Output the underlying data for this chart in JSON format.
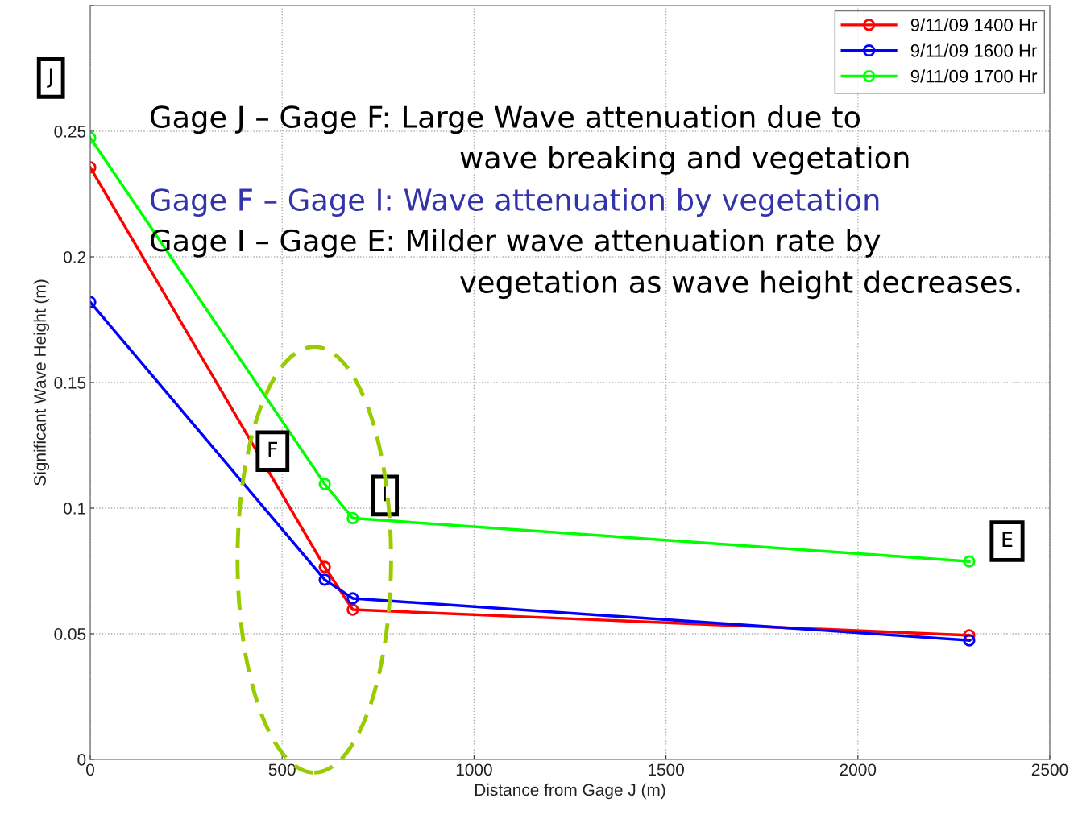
{
  "chart_data": {
    "type": "line",
    "xlabel": "Distance from Gage J (m)",
    "ylabel": "Significant Wave Height (m)",
    "x": [
      0,
      611,
      684,
      2290
    ],
    "series": [
      {
        "name": "9/11/09 1400 Hr",
        "color": "#ff0000",
        "values": [
          0.2356,
          0.0766,
          0.0596,
          0.0494
        ]
      },
      {
        "name": "9/11/09 1600 Hr",
        "color": "#0000ff",
        "values": [
          0.182,
          0.0715,
          0.0641,
          0.0474
        ]
      },
      {
        "name": "9/11/09 1700 Hr",
        "color": "#00ff00",
        "values": [
          0.2474,
          0.1096,
          0.096,
          0.0788
        ]
      }
    ],
    "xlim": [
      0,
      2500
    ],
    "xticks": [
      0,
      500,
      1000,
      1500,
      2000,
      2500
    ],
    "ylim": [
      0,
      0.3
    ],
    "yticks": [
      0,
      0.05,
      {
        "value": 0.1,
        "label": "0.1"
      },
      0.15,
      {
        "value": 0.2,
        "label": "0.2"
      },
      0.25,
      {
        "value": 0.3,
        "label": null
      }
    ],
    "grid": true,
    "legend": "top right",
    "marker": "circle",
    "line_style": "solid",
    "annotations": [
      "Gage J – Gage F: Large Wave attenuation due to",
      "wave breaking and vegetation",
      "Gage F – Gage I: Wave attenuation by vegetation",
      "Gage I – Gage E: Milder wave attenuation rate by",
      "vegetation as wave height decreases.",
      "J",
      "F",
      "I",
      "E"
    ]
  }
}
